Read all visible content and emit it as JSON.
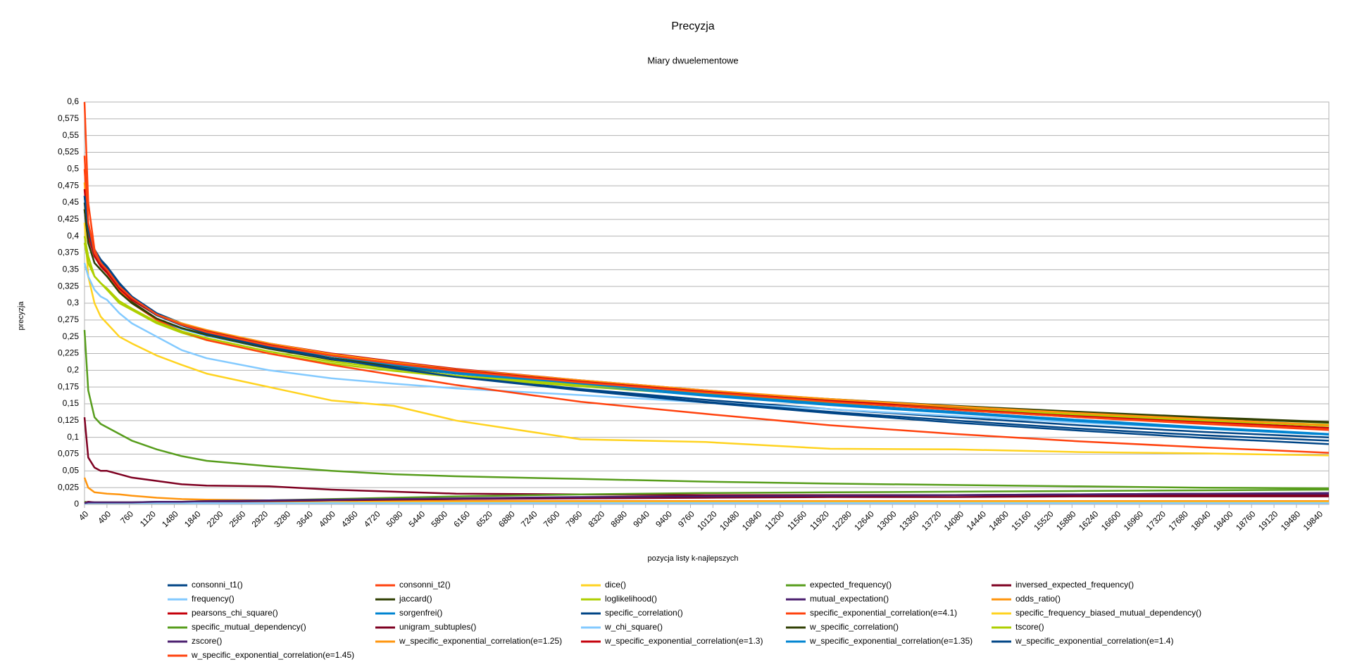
{
  "chart_data": {
    "type": "line",
    "title": "Precyzja",
    "subtitle": "Miary dwuelementowe",
    "x_label": "pozycja listy k-najlepszych",
    "y_label": "precyzja",
    "grid": true,
    "legend": "bottom",
    "xlim": [
      40,
      20000
    ],
    "ylim": [
      0,
      0.6
    ],
    "xticks": [
      40,
      400,
      760,
      1120,
      1480,
      1840,
      2200,
      2560,
      2920,
      3280,
      3640,
      4000,
      4360,
      4720,
      5080,
      5440,
      5800,
      6160,
      6520,
      6880,
      7240,
      7600,
      7960,
      8320,
      8680,
      9040,
      9400,
      9760,
      10120,
      10480,
      10840,
      11200,
      11560,
      11920,
      12280,
      12640,
      13000,
      13360,
      13720,
      14080,
      14440,
      14800,
      15160,
      15520,
      15880,
      16240,
      16600,
      16960,
      17320,
      17680,
      18040,
      18400,
      18760,
      19120,
      19480,
      19840
    ],
    "yticks": [
      0,
      {
        "value": 0.025,
        "label": "0,025"
      },
      {
        "value": 0.05,
        "label": "0,05"
      },
      {
        "value": 0.075,
        "label": "0,075"
      },
      {
        "value": 0.1,
        "label": "0,1"
      },
      {
        "value": 0.125,
        "label": "0,125"
      },
      {
        "value": 0.15,
        "label": "0,15"
      },
      {
        "value": 0.175,
        "label": "0,175"
      },
      {
        "value": 0.2,
        "label": "0,2"
      },
      {
        "value": 0.225,
        "label": "0,225"
      },
      {
        "value": 0.25,
        "label": "0,25"
      },
      {
        "value": 0.275,
        "label": "0,275"
      },
      {
        "value": 0.3,
        "label": "0,3"
      },
      {
        "value": 0.325,
        "label": "0,325"
      },
      {
        "value": 0.35,
        "label": "0,35"
      },
      {
        "value": 0.375,
        "label": "0,375"
      },
      {
        "value": 0.4,
        "label": "0,4"
      },
      {
        "value": 0.425,
        "label": "0,425"
      },
      {
        "value": 0.45,
        "label": "0,45"
      },
      {
        "value": 0.475,
        "label": "0,475"
      },
      {
        "value": 0.5,
        "label": "0,5"
      },
      {
        "value": 0.525,
        "label": "0,525"
      },
      {
        "value": 0.55,
        "label": "0,55"
      },
      {
        "value": 0.575,
        "label": "0,575"
      },
      {
        "value": 0.6,
        "label": "0,6"
      }
    ],
    "x": [
      40,
      100,
      200,
      300,
      400,
      600,
      800,
      1200,
      1600,
      2000,
      3000,
      4000,
      5000,
      6000,
      8000,
      10000,
      12000,
      14000,
      16000,
      18000,
      20000
    ],
    "series": [
      {
        "name": "consonni_t1()",
        "color": "#004586",
        "values": [
          0.44,
          0.41,
          0.38,
          0.365,
          0.355,
          0.33,
          0.31,
          0.285,
          0.27,
          0.258,
          0.236,
          0.218,
          0.204,
          0.191,
          0.172,
          0.156,
          0.142,
          0.13,
          0.118,
          0.108,
          0.1
        ]
      },
      {
        "name": "consonni_t2()",
        "color": "#ff420e",
        "values": [
          0.5,
          0.42,
          0.375,
          0.36,
          0.35,
          0.325,
          0.308,
          0.283,
          0.268,
          0.256,
          0.237,
          0.222,
          0.21,
          0.199,
          0.182,
          0.167,
          0.153,
          0.141,
          0.13,
          0.12,
          0.111
        ]
      },
      {
        "name": "dice()",
        "color": "#ffd320",
        "values": [
          0.42,
          0.34,
          0.3,
          0.28,
          0.27,
          0.25,
          0.24,
          0.222,
          0.208,
          0.195,
          0.175,
          0.155,
          0.147,
          0.125,
          0.097,
          0.093,
          0.083,
          0.082,
          0.078,
          0.076,
          0.073
        ]
      },
      {
        "name": "expected_frequency()",
        "color": "#579d1c",
        "values": [
          0.26,
          0.17,
          0.13,
          0.12,
          0.115,
          0.105,
          0.095,
          0.082,
          0.072,
          0.065,
          0.057,
          0.05,
          0.045,
          0.042,
          0.038,
          0.034,
          0.031,
          0.029,
          0.027,
          0.025,
          0.024
        ]
      },
      {
        "name": "inversed_expected_frequency()",
        "color": "#7e0021",
        "values": [
          0.13,
          0.07,
          0.055,
          0.05,
          0.05,
          0.045,
          0.04,
          0.035,
          0.03,
          0.028,
          0.027,
          0.022,
          0.019,
          0.016,
          0.015,
          0.014,
          0.014,
          0.014,
          0.014,
          0.014,
          0.014
        ]
      },
      {
        "name": "frequency()",
        "color": "#83caff",
        "values": [
          0.36,
          0.34,
          0.32,
          0.31,
          0.305,
          0.285,
          0.27,
          0.25,
          0.23,
          0.218,
          0.2,
          0.188,
          0.18,
          0.173,
          0.163,
          0.152,
          0.142,
          0.132,
          0.122,
          0.113,
          0.105
        ]
      },
      {
        "name": "jaccard()",
        "color": "#314004",
        "values": [
          0.45,
          0.4,
          0.37,
          0.355,
          0.345,
          0.32,
          0.302,
          0.277,
          0.262,
          0.252,
          0.232,
          0.216,
          0.205,
          0.195,
          0.181,
          0.168,
          0.156,
          0.146,
          0.137,
          0.129,
          0.122
        ]
      },
      {
        "name": "loglikelihood()",
        "color": "#aecf00",
        "values": [
          0.4,
          0.37,
          0.34,
          0.33,
          0.32,
          0.3,
          0.29,
          0.27,
          0.256,
          0.245,
          0.225,
          0.21,
          0.199,
          0.19,
          0.176,
          0.163,
          0.152,
          0.142,
          0.133,
          0.126,
          0.119
        ]
      },
      {
        "name": "mutual_expectation()",
        "color": "#4b1f6f",
        "values": [
          0.002,
          0.003,
          0.003,
          0.003,
          0.003,
          0.003,
          0.003,
          0.003,
          0.004,
          0.004,
          0.005,
          0.006,
          0.007,
          0.008,
          0.01,
          0.012,
          0.013,
          0.014,
          0.015,
          0.016,
          0.017
        ]
      },
      {
        "name": "odds_ratio()",
        "color": "#ff950e",
        "values": [
          0.04,
          0.025,
          0.018,
          0.017,
          0.016,
          0.015,
          0.013,
          0.01,
          0.008,
          0.007,
          0.006,
          0.006,
          0.005,
          0.005,
          0.005,
          0.005,
          0.005,
          0.005,
          0.005,
          0.005,
          0.005
        ]
      },
      {
        "name": "pearsons_chi_square()",
        "color": "#c5000b",
        "values": [
          0.44,
          0.4,
          0.37,
          0.355,
          0.345,
          0.32,
          0.305,
          0.282,
          0.268,
          0.259,
          0.24,
          0.225,
          0.213,
          0.202,
          0.185,
          0.17,
          0.156,
          0.144,
          0.133,
          0.123,
          0.114
        ]
      },
      {
        "name": "sorgenfrei()",
        "color": "#0084d1",
        "values": [
          0.44,
          0.39,
          0.36,
          0.35,
          0.34,
          0.318,
          0.3,
          0.276,
          0.262,
          0.252,
          0.233,
          0.218,
          0.206,
          0.195,
          0.178,
          0.162,
          0.148,
          0.136,
          0.124,
          0.113,
          0.104
        ]
      },
      {
        "name": "specific_correlation()",
        "color": "#004586",
        "values": [
          0.46,
          0.41,
          0.38,
          0.365,
          0.352,
          0.328,
          0.31,
          0.283,
          0.268,
          0.257,
          0.235,
          0.218,
          0.204,
          0.191,
          0.171,
          0.153,
          0.138,
          0.125,
          0.113,
          0.103,
          0.095
        ]
      },
      {
        "name": "specific_exponential_correlation(e=4.1)",
        "color": "#ff420e",
        "values": [
          0.6,
          0.45,
          0.38,
          0.36,
          0.345,
          0.32,
          0.3,
          0.275,
          0.258,
          0.245,
          0.225,
          0.208,
          0.193,
          0.178,
          0.153,
          0.135,
          0.118,
          0.105,
          0.094,
          0.085,
          0.077
        ]
      },
      {
        "name": "specific_frequency_biased_mutual_dependency()",
        "color": "#ffd320",
        "values": [
          0.003,
          0.002,
          0.002,
          0.002,
          0.002,
          0.002,
          0.002,
          0.002,
          0.002,
          0.003,
          0.003,
          0.003,
          0.003,
          0.003,
          0.003,
          0.003,
          0.003,
          0.003,
          0.003,
          0.003,
          0.003
        ]
      },
      {
        "name": "specific_mutual_dependency()",
        "color": "#579d1c",
        "values": [
          0.004,
          0.003,
          0.003,
          0.003,
          0.003,
          0.003,
          0.003,
          0.004,
          0.004,
          0.005,
          0.006,
          0.008,
          0.01,
          0.012,
          0.015,
          0.017,
          0.018,
          0.019,
          0.02,
          0.021,
          0.022
        ]
      },
      {
        "name": "unigram_subtuples()",
        "color": "#7e0021",
        "values": [
          0.002,
          0.004,
          0.003,
          0.003,
          0.003,
          0.003,
          0.003,
          0.003,
          0.004,
          0.004,
          0.005,
          0.006,
          0.007,
          0.008,
          0.009,
          0.01,
          0.011,
          0.011,
          0.012,
          0.012,
          0.012
        ]
      },
      {
        "name": "w_chi_square()",
        "color": "#83caff",
        "values": [
          0.001,
          0.002,
          0.002,
          0.002,
          0.002,
          0.002,
          0.002,
          0.002,
          0.002,
          0.002,
          0.002,
          0.002,
          0.002,
          0.002,
          0.002,
          0.002,
          0.002,
          0.002,
          0.002,
          0.002,
          0.002
        ]
      },
      {
        "name": "w_specific_correlation()",
        "color": "#314004",
        "values": [
          0.44,
          0.39,
          0.36,
          0.35,
          0.34,
          0.316,
          0.3,
          0.277,
          0.263,
          0.253,
          0.233,
          0.218,
          0.207,
          0.197,
          0.182,
          0.169,
          0.157,
          0.147,
          0.138,
          0.13,
          0.123
        ]
      },
      {
        "name": "tscore()",
        "color": "#aecf00",
        "values": [
          0.39,
          0.36,
          0.34,
          0.33,
          0.322,
          0.303,
          0.292,
          0.272,
          0.258,
          0.248,
          0.228,
          0.213,
          0.202,
          0.192,
          0.178,
          0.165,
          0.153,
          0.143,
          0.134,
          0.125,
          0.117
        ]
      },
      {
        "name": "zscore()",
        "color": "#4b1f6f",
        "values": [
          0.002,
          0.003,
          0.003,
          0.003,
          0.003,
          0.003,
          0.003,
          0.004,
          0.004,
          0.005,
          0.006,
          0.007,
          0.008,
          0.009,
          0.011,
          0.012,
          0.013,
          0.014,
          0.015,
          0.016,
          0.016
        ]
      },
      {
        "name": "w_specific_exponential_correlation(e=1.25)",
        "color": "#ff950e",
        "values": [
          0.48,
          0.41,
          0.37,
          0.356,
          0.346,
          0.322,
          0.306,
          0.283,
          0.27,
          0.26,
          0.24,
          0.224,
          0.212,
          0.201,
          0.185,
          0.17,
          0.157,
          0.146,
          0.136,
          0.127,
          0.118
        ]
      },
      {
        "name": "w_specific_exponential_correlation(e=1.3)",
        "color": "#c5000b",
        "values": [
          0.47,
          0.41,
          0.37,
          0.356,
          0.346,
          0.322,
          0.306,
          0.282,
          0.268,
          0.258,
          0.238,
          0.222,
          0.21,
          0.2,
          0.183,
          0.168,
          0.154,
          0.142,
          0.131,
          0.121,
          0.112
        ]
      },
      {
        "name": "w_specific_exponential_correlation(e=1.35)",
        "color": "#0084d1",
        "values": [
          0.46,
          0.41,
          0.375,
          0.36,
          0.35,
          0.325,
          0.308,
          0.283,
          0.268,
          0.257,
          0.237,
          0.221,
          0.208,
          0.197,
          0.18,
          0.164,
          0.15,
          0.138,
          0.126,
          0.115,
          0.105
        ]
      },
      {
        "name": "w_specific_exponential_correlation(e=1.4)",
        "color": "#004586",
        "values": [
          0.46,
          0.41,
          0.375,
          0.36,
          0.35,
          0.325,
          0.308,
          0.282,
          0.267,
          0.255,
          0.234,
          0.217,
          0.203,
          0.19,
          0.17,
          0.152,
          0.136,
          0.122,
          0.11,
          0.099,
          0.09
        ]
      },
      {
        "name": "w_specific_exponential_correlation(e=1.45)",
        "color": "#ff420e",
        "values": [
          0.52,
          0.42,
          0.375,
          0.36,
          0.35,
          0.325,
          0.308,
          0.283,
          0.268,
          0.257,
          0.237,
          0.222,
          0.21,
          0.199,
          0.182,
          0.167,
          0.153,
          0.141,
          0.13,
          0.121,
          0.112
        ]
      }
    ]
  }
}
